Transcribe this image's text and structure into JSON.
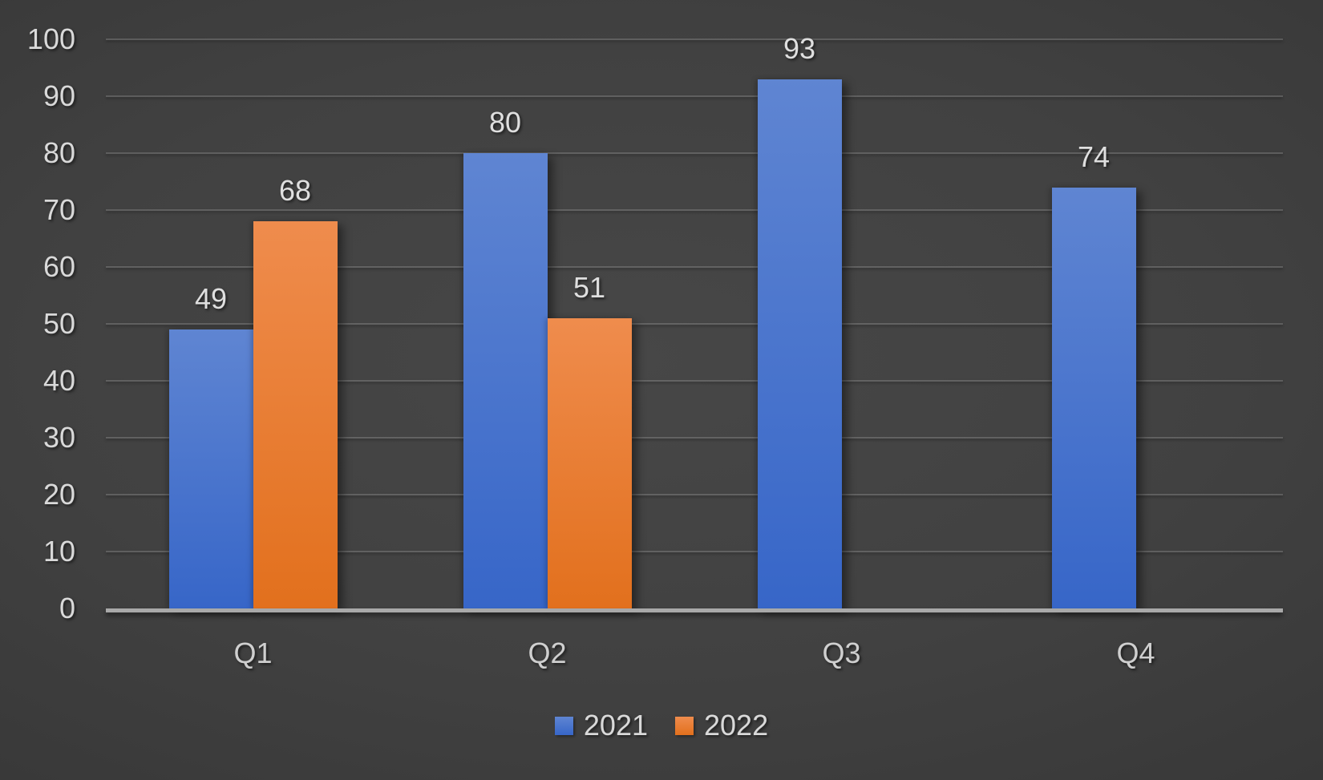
{
  "chart_data": {
    "type": "bar",
    "title": "",
    "categories": [
      "Q1",
      "Q2",
      "Q3",
      "Q4"
    ],
    "series": [
      {
        "name": "2021",
        "values": [
          49,
          80,
          93,
          74
        ],
        "color_top": "#5F85D2",
        "color_bottom": "#3766C8"
      },
      {
        "name": "2022",
        "values": [
          68,
          51,
          null,
          null
        ],
        "color_top": "#EF8C4D",
        "color_bottom": "#E2701D"
      }
    ],
    "ylim": [
      0,
      100
    ],
    "ytick_step": 10,
    "yticks": [
      "0",
      "10",
      "20",
      "30",
      "40",
      "50",
      "60",
      "70",
      "80",
      "90",
      "100"
    ],
    "grid": true,
    "legend_position": "bottom",
    "show_data_labels": true
  },
  "colors": {
    "background_center": "#474747",
    "background_edge": "#242424",
    "gridline": "rgba(255,255,255,0.16)",
    "axis_line": "#A9A9A9",
    "tick_label": "#D9D9D9",
    "data_label": "#DFDFDF",
    "category_label": "#CFCFCF",
    "legend_label": "#D9D9D9"
  }
}
